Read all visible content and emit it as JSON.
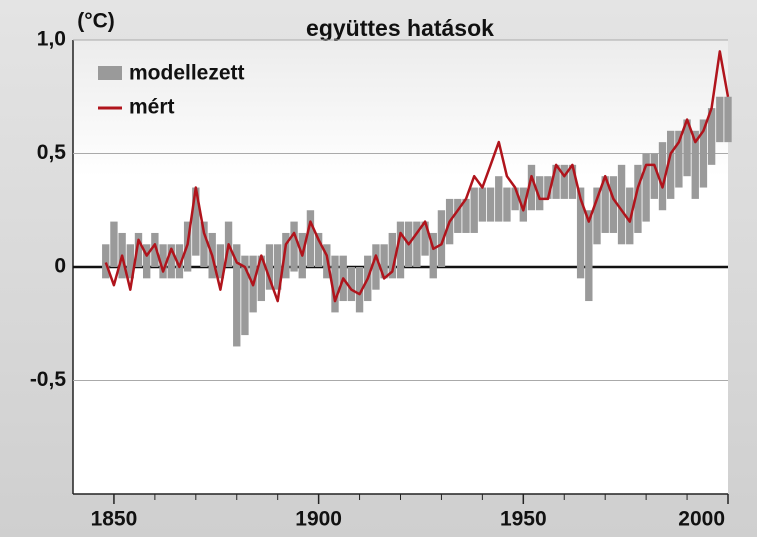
{
  "chart_data": {
    "type": "band-line",
    "title": "együttes hatások",
    "y_unit": "(°C)",
    "x": [
      1848,
      1850,
      1852,
      1854,
      1856,
      1858,
      1860,
      1862,
      1864,
      1866,
      1868,
      1870,
      1872,
      1874,
      1876,
      1878,
      1880,
      1882,
      1884,
      1886,
      1888,
      1890,
      1892,
      1894,
      1896,
      1898,
      1900,
      1902,
      1904,
      1906,
      1908,
      1910,
      1912,
      1914,
      1916,
      1918,
      1920,
      1922,
      1924,
      1926,
      1928,
      1930,
      1932,
      1934,
      1936,
      1938,
      1940,
      1942,
      1944,
      1946,
      1948,
      1950,
      1952,
      1954,
      1956,
      1958,
      1960,
      1962,
      1964,
      1966,
      1968,
      1970,
      1972,
      1974,
      1976,
      1978,
      1980,
      1982,
      1984,
      1986,
      1988,
      1990,
      1992,
      1994,
      1996,
      1998,
      2000
    ],
    "series": [
      {
        "name": "modellezett",
        "color": "#9a9a9a",
        "low": [
          -0.05,
          0.0,
          -0.05,
          -0.05,
          0.0,
          -0.05,
          0.0,
          -0.05,
          -0.05,
          -0.05,
          -0.02,
          0.05,
          0.0,
          -0.05,
          -0.05,
          0.0,
          -0.35,
          -0.3,
          -0.2,
          -0.15,
          -0.1,
          -0.1,
          -0.05,
          -0.02,
          -0.05,
          0.0,
          0.0,
          -0.05,
          -0.2,
          -0.15,
          -0.15,
          -0.2,
          -0.15,
          -0.1,
          -0.05,
          -0.05,
          -0.05,
          0.0,
          0.0,
          0.05,
          -0.05,
          0.0,
          0.1,
          0.15,
          0.15,
          0.15,
          0.2,
          0.2,
          0.2,
          0.2,
          0.25,
          0.2,
          0.25,
          0.25,
          0.3,
          0.3,
          0.3,
          0.3,
          -0.05,
          -0.15,
          0.1,
          0.15,
          0.15,
          0.1,
          0.1,
          0.15,
          0.2,
          0.3,
          0.25,
          0.3,
          0.35,
          0.4,
          0.3,
          0.35,
          0.45,
          0.55,
          0.55
        ],
        "high": [
          0.1,
          0.2,
          0.15,
          0.1,
          0.15,
          0.1,
          0.15,
          0.1,
          0.1,
          0.1,
          0.2,
          0.35,
          0.2,
          0.15,
          0.1,
          0.2,
          0.1,
          0.05,
          0.05,
          0.05,
          0.1,
          0.1,
          0.15,
          0.2,
          0.15,
          0.25,
          0.15,
          0.1,
          0.05,
          0.05,
          0.0,
          0.0,
          0.05,
          0.1,
          0.1,
          0.15,
          0.2,
          0.2,
          0.2,
          0.2,
          0.15,
          0.25,
          0.3,
          0.3,
          0.3,
          0.35,
          0.35,
          0.35,
          0.4,
          0.35,
          0.35,
          0.35,
          0.45,
          0.4,
          0.4,
          0.45,
          0.45,
          0.45,
          0.35,
          0.25,
          0.35,
          0.4,
          0.4,
          0.45,
          0.35,
          0.45,
          0.5,
          0.5,
          0.55,
          0.6,
          0.6,
          0.65,
          0.6,
          0.65,
          0.7,
          0.75,
          0.75
        ]
      },
      {
        "name": "mért",
        "color": "#b0141c",
        "values": [
          0.02,
          -0.08,
          0.05,
          -0.1,
          0.12,
          0.05,
          0.1,
          -0.02,
          0.08,
          0,
          0.1,
          0.35,
          0.15,
          0.05,
          -0.1,
          0.1,
          0.02,
          0,
          -0.08,
          0.05,
          -0.05,
          -0.15,
          0.1,
          0.15,
          0.05,
          0.2,
          0.12,
          0.05,
          -0.15,
          -0.05,
          -0.1,
          -0.12,
          -0.05,
          0.05,
          -0.05,
          -0.02,
          0.15,
          0.1,
          0.15,
          0.2,
          0.08,
          0.1,
          0.2,
          0.25,
          0.3,
          0.4,
          0.35,
          0.45,
          0.55,
          0.4,
          0.35,
          0.25,
          0.4,
          0.3,
          0.3,
          0.45,
          0.4,
          0.45,
          0.3,
          0.2,
          0.3,
          0.4,
          0.3,
          0.25,
          0.2,
          0.35,
          0.45,
          0.45,
          0.35,
          0.5,
          0.55,
          0.65,
          0.55,
          0.6,
          0.7,
          0.95,
          0.75
        ]
      }
    ],
    "xlim": [
      1840,
      2000
    ],
    "ylim": [
      -1,
      1
    ],
    "xticks": [
      1850,
      1900,
      1950,
      2000
    ],
    "xminorticks": [
      1860,
      1870,
      1880,
      1890,
      1910,
      1920,
      1930,
      1940,
      1960,
      1970,
      1980,
      1990
    ],
    "yticks": [
      {
        "value": 1,
        "label": "1,0"
      },
      {
        "value": 0.5,
        "label": "0,5"
      },
      0,
      {
        "value": -0.5,
        "label": "-0,5"
      }
    ],
    "grid": true,
    "legend": "top-left"
  }
}
